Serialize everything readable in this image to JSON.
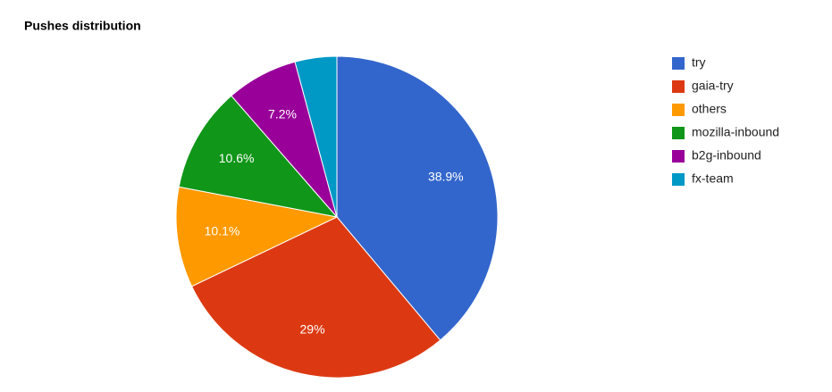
{
  "chart_data": {
    "type": "pie",
    "title": "Pushes distribution",
    "categories": [
      "try",
      "gaia-try",
      "others",
      "mozilla-inbound",
      "b2g-inbound",
      "fx-team"
    ],
    "values": [
      38.9,
      29,
      10.1,
      10.6,
      7.2,
      4.2
    ],
    "value_labels": [
      "38.9%",
      "29%",
      "10.1%",
      "10.6%",
      "7.2%",
      null
    ],
    "colors": [
      "#3366cc",
      "#dc3912",
      "#ff9900",
      "#109618",
      "#990099",
      "#0099c6"
    ],
    "legend": "right"
  }
}
